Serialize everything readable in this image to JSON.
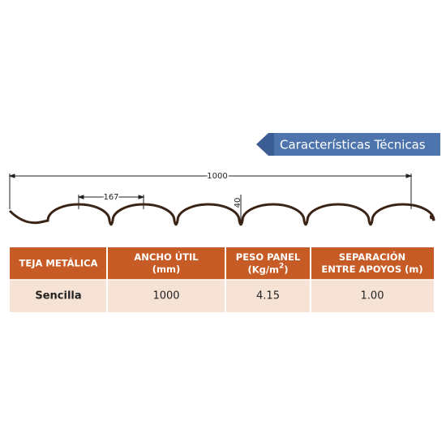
{
  "banner": {
    "title": "Características Técnicas"
  },
  "diagram": {
    "width_label": "1000",
    "pitch_label": "167",
    "height_label": "40"
  },
  "table": {
    "headers": [
      {
        "lines": [
          "TEJA METÁLICA"
        ]
      },
      {
        "lines": [
          "ANCHO ÚTIL",
          "(mm)"
        ]
      },
      {
        "lines": [
          "PESO PANEL"
        ],
        "unit": "(Kg/m",
        "sup": "2",
        "close": ")"
      },
      {
        "lines": [
          "SEPARACIÓN",
          "ENTRE APOYOS (m)"
        ]
      }
    ],
    "rows": [
      [
        "Sencilla",
        "1000",
        "4.15",
        "1.00"
      ]
    ]
  }
}
